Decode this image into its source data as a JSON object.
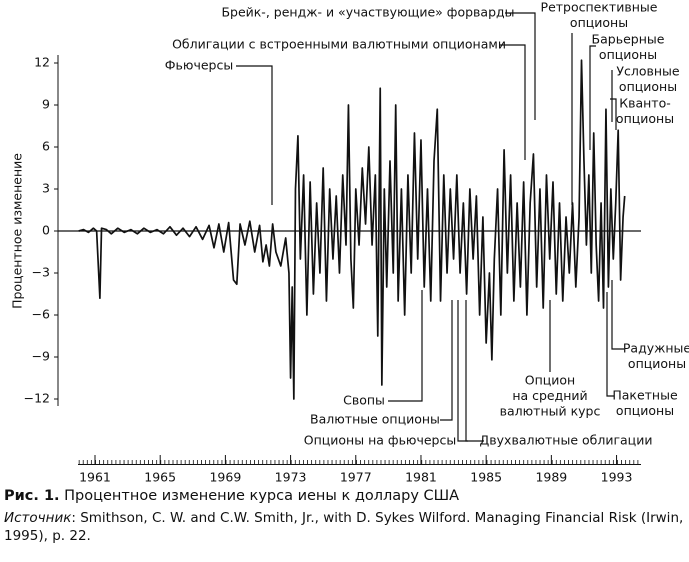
{
  "chart_data": {
    "type": "line",
    "ylabel": "Процентное изменение",
    "xlim": [
      1960,
      1994.5
    ],
    "xticks": [
      1961,
      1965,
      1969,
      1973,
      1977,
      1981,
      1985,
      1989,
      1993
    ],
    "ylim": [
      -12.5,
      12.5
    ],
    "yticks": [
      {
        "value": -12,
        "label": "−12"
      },
      {
        "value": -9,
        "label": "−9"
      },
      {
        "value": -6,
        "label": "−6"
      },
      {
        "value": -3,
        "label": "−3"
      },
      0,
      3,
      6,
      9,
      12
    ],
    "x": [
      1960.0,
      1960.3,
      1960.6,
      1960.9,
      1961.1,
      1961.3,
      1961.4,
      1961.7,
      1962.0,
      1962.4,
      1962.8,
      1963.2,
      1963.6,
      1964.0,
      1964.4,
      1964.8,
      1965.2,
      1965.6,
      1966.0,
      1966.4,
      1966.8,
      1967.2,
      1967.6,
      1968.0,
      1968.3,
      1968.6,
      1968.9,
      1969.2,
      1969.5,
      1969.7,
      1969.9,
      1970.2,
      1970.5,
      1970.8,
      1971.1,
      1971.3,
      1971.5,
      1971.7,
      1971.9,
      1972.1,
      1972.4,
      1972.7,
      1972.9,
      1973.0,
      1973.1,
      1973.2,
      1973.3,
      1973.45,
      1973.6,
      1973.8,
      1974.0,
      1974.2,
      1974.4,
      1974.6,
      1974.8,
      1975.0,
      1975.2,
      1975.4,
      1975.6,
      1975.8,
      1976.0,
      1976.2,
      1976.4,
      1976.55,
      1976.7,
      1976.85,
      1977.0,
      1977.2,
      1977.4,
      1977.6,
      1977.8,
      1978.0,
      1978.2,
      1978.35,
      1978.5,
      1978.6,
      1978.75,
      1978.9,
      1979.1,
      1979.3,
      1979.45,
      1979.6,
      1979.8,
      1980.0,
      1980.2,
      1980.4,
      1980.6,
      1980.8,
      1981.0,
      1981.2,
      1981.4,
      1981.6,
      1981.8,
      1982.0,
      1982.2,
      1982.4,
      1982.6,
      1982.8,
      1983.0,
      1983.2,
      1983.4,
      1983.6,
      1983.8,
      1984.0,
      1984.2,
      1984.4,
      1984.6,
      1984.8,
      1985.0,
      1985.2,
      1985.35,
      1985.5,
      1985.7,
      1985.9,
      1986.1,
      1986.3,
      1986.5,
      1986.7,
      1986.9,
      1987.1,
      1987.3,
      1987.5,
      1987.7,
      1987.9,
      1988.1,
      1988.3,
      1988.5,
      1988.7,
      1988.9,
      1989.1,
      1989.3,
      1989.5,
      1989.7,
      1989.9,
      1990.1,
      1990.3,
      1990.5,
      1990.7,
      1990.85,
      1991.0,
      1991.15,
      1991.3,
      1991.45,
      1991.6,
      1991.75,
      1991.9,
      1992.05,
      1992.2,
      1992.35,
      1992.5,
      1992.65,
      1992.8,
      1992.95,
      1993.1,
      1993.25,
      1993.4,
      1993.5
    ],
    "series": [
      {
        "color": "#111111",
        "values": [
          0,
          0.1,
          -0.1,
          0.2,
          0,
          -4.8,
          0.2,
          0.1,
          -0.2,
          0.2,
          -0.1,
          0.1,
          -0.2,
          0.2,
          -0.1,
          0.1,
          -0.2,
          0.3,
          -0.3,
          0.2,
          -0.4,
          0.3,
          -0.6,
          0.4,
          -1.2,
          0.5,
          -1.5,
          0.6,
          -3.5,
          -3.8,
          0.5,
          -1,
          0.7,
          -1.5,
          0.4,
          -2.2,
          -1,
          -2.5,
          0.5,
          -1.5,
          -2.5,
          -0.5,
          -3,
          -10.5,
          -4,
          -12,
          3,
          6.8,
          -2,
          4,
          -6,
          3.5,
          -4.5,
          2,
          -3,
          4.5,
          -5,
          3,
          -2,
          2.5,
          -3,
          4,
          -1,
          9,
          -2,
          -5.5,
          3,
          -1,
          4.5,
          0.5,
          6,
          -1,
          4,
          -7.5,
          10.2,
          -11,
          3,
          -4,
          5,
          -3,
          9,
          -5,
          3,
          -6,
          4,
          -3,
          7,
          -2,
          6.5,
          -4,
          3,
          -5,
          5,
          8.7,
          -5,
          4,
          -3,
          3,
          -2,
          4,
          -3,
          2,
          -4.5,
          3,
          -2,
          2.5,
          -6,
          1,
          -8,
          -3,
          -9.2,
          -2,
          3,
          -6,
          5.8,
          -3,
          4,
          -5,
          2,
          -4,
          3.5,
          -6,
          2,
          5.5,
          -4,
          3,
          -5.5,
          4,
          -2,
          3.5,
          -4.5,
          2,
          -5,
          1,
          -3,
          2,
          -4,
          1,
          12.2,
          5,
          -1,
          4,
          -3,
          7,
          -1,
          -5,
          2,
          -5.5,
          8.7,
          -4,
          3,
          -2,
          2,
          7.2,
          -3.5,
          1,
          2.5
        ]
      }
    ],
    "annotations": [
      {
        "lines": [
          "Брейк-, рендж- и «участвующие» форварды"
        ]
      },
      {
        "lines": [
          "Облигации с встроенными валютными опционами"
        ]
      },
      {
        "lines": [
          "Фьючерсы"
        ]
      },
      {
        "lines": [
          "Ретроспективные",
          "опционы"
        ]
      },
      {
        "lines": [
          "Барьерные",
          "опционы"
        ]
      },
      {
        "lines": [
          "Условные",
          "опционы"
        ]
      },
      {
        "lines": [
          "Кванто-",
          "опционы"
        ]
      },
      {
        "lines": [
          "Радужные",
          "опционы"
        ]
      },
      {
        "lines": [
          "Пакетные",
          "опционы"
        ]
      },
      {
        "lines": [
          "Опцион",
          "на средний",
          "валютный курс"
        ]
      },
      {
        "lines": [
          "Свопы"
        ]
      },
      {
        "lines": [
          "Валютные опционы"
        ]
      },
      {
        "lines": [
          "Опционы на фьючерсы"
        ]
      },
      {
        "lines": [
          "Двухвалютные облигации"
        ]
      }
    ]
  },
  "caption": {
    "label": "Рис. 1.",
    "title": "Процентное изменение курса иены к доллару США",
    "source_label": "Источник",
    "source_text": ": Smithson, C. W. and C.W. Smith, Jr., with D. Sykes Wilford. Managing Financial Risk (Irwin, 1995), p. 22."
  }
}
